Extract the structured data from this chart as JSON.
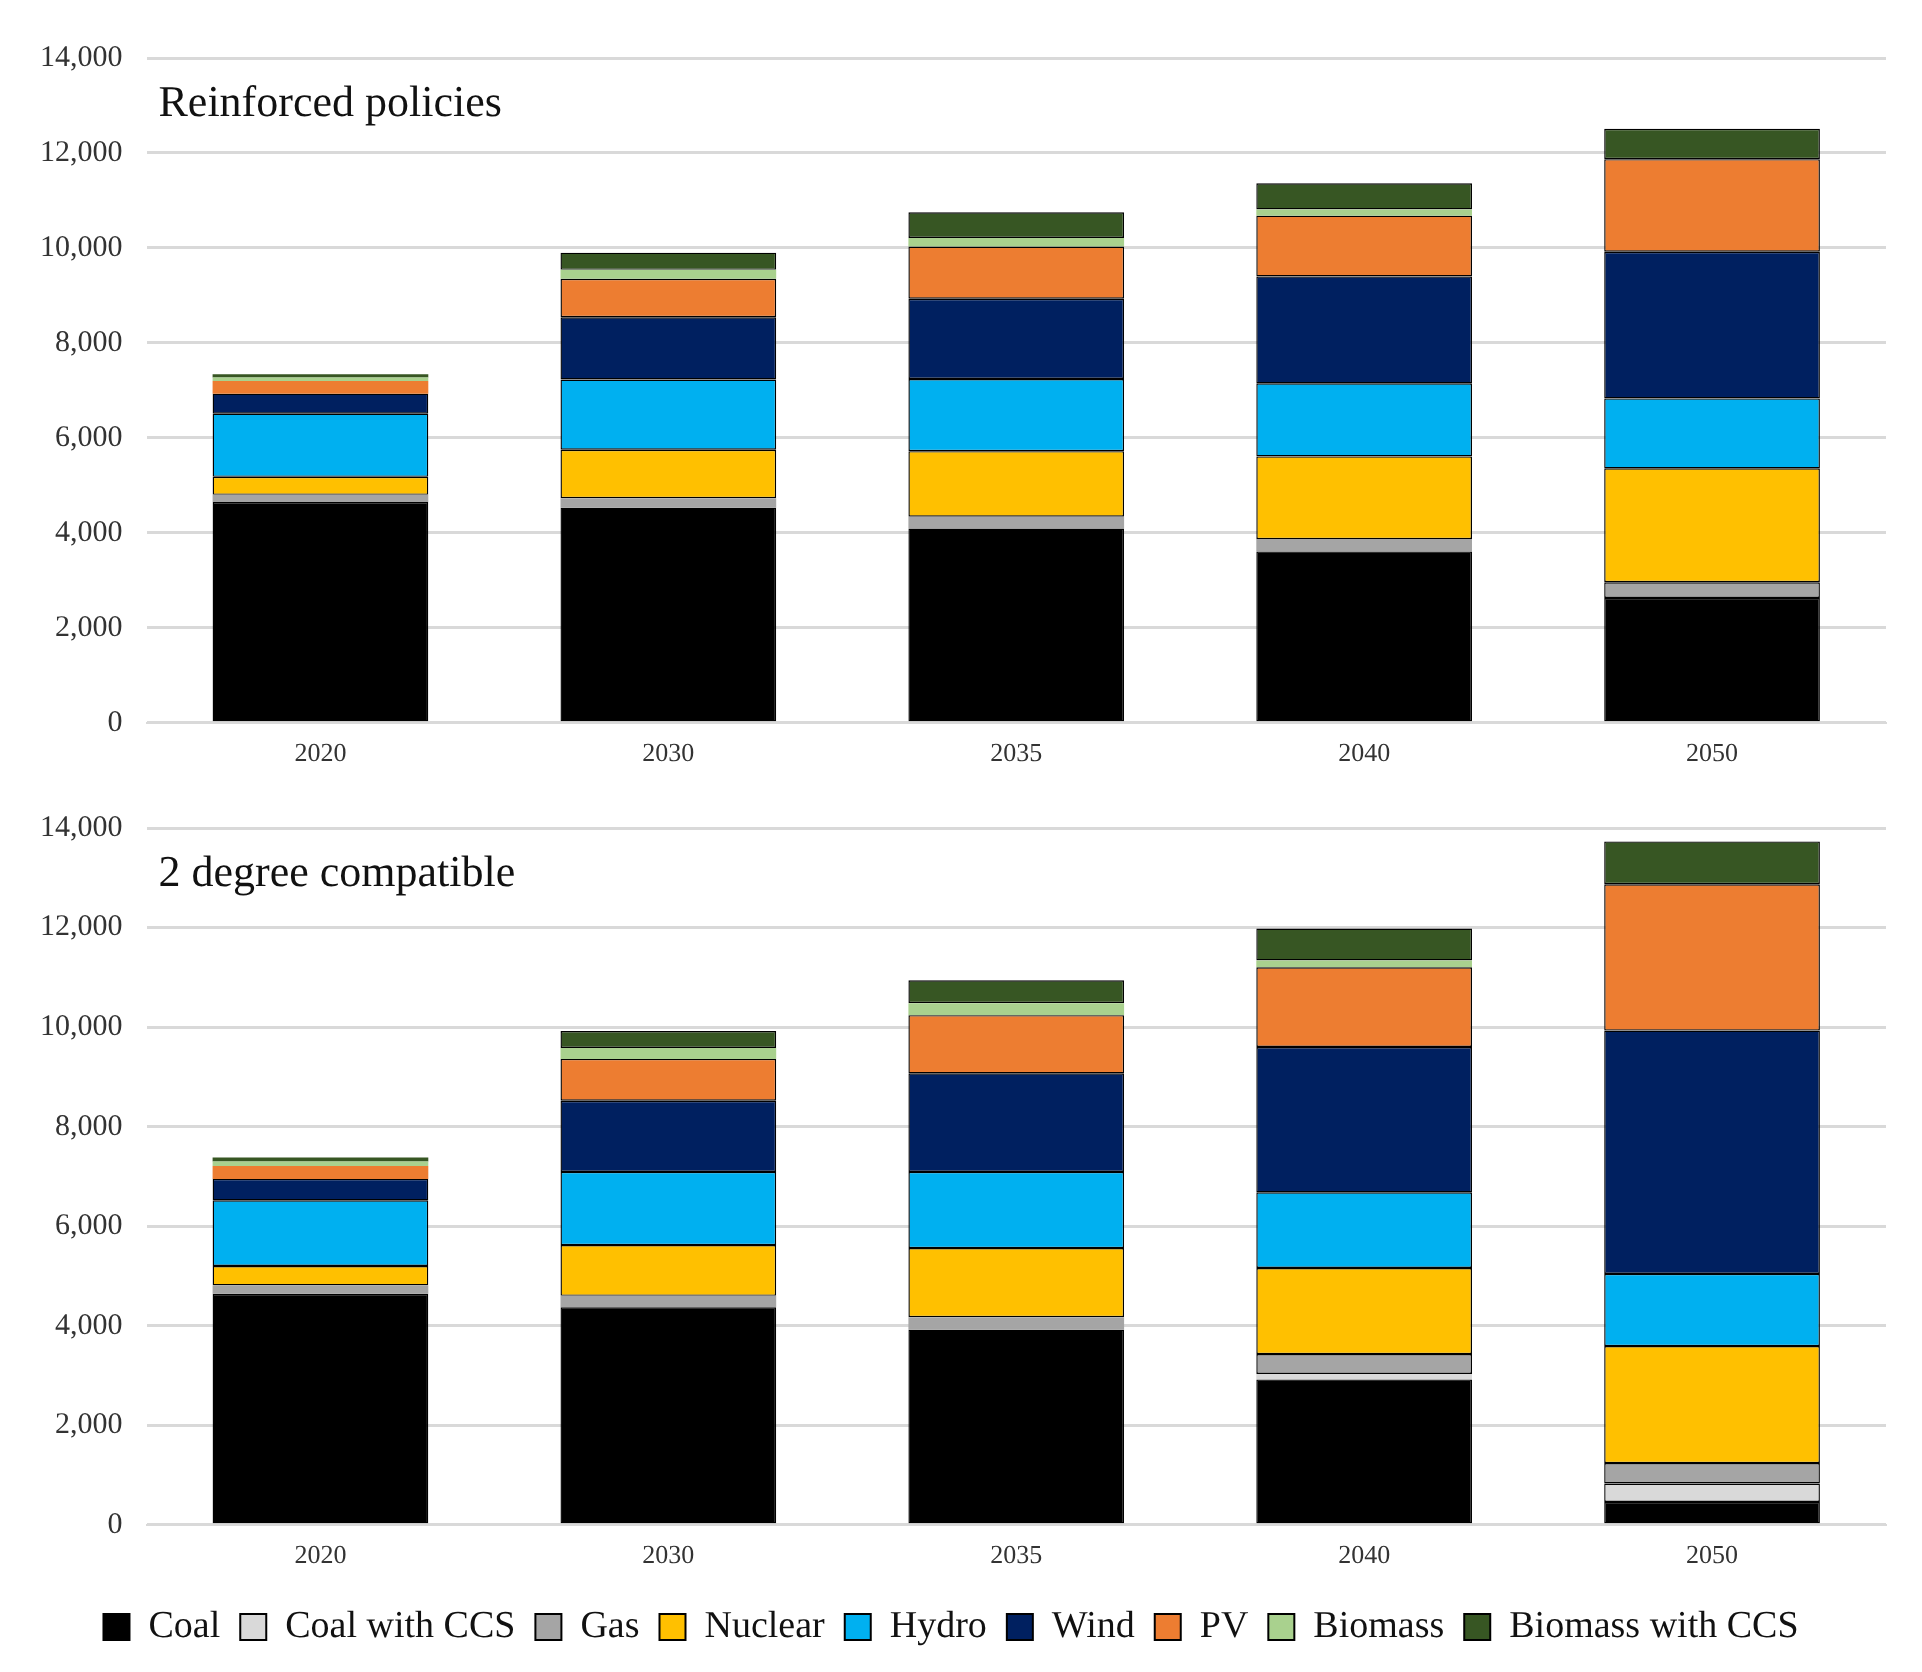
{
  "chart_data": [
    {
      "type": "bar",
      "title": "Reinforced policies",
      "categories": [
        "2020",
        "2030",
        "2035",
        "2040",
        "2050"
      ],
      "stacked": true,
      "ylim": [
        0,
        14000
      ],
      "yticks": [
        0,
        {
          "value": 2000,
          "label": "2,000"
        },
        {
          "value": 4000,
          "label": "4,000"
        },
        {
          "value": 6000,
          "label": "6,000"
        },
        {
          "value": 8000,
          "label": "8,000"
        },
        {
          "value": 10000,
          "label": "10,000"
        },
        {
          "value": 12000,
          "label": "12,000"
        },
        {
          "value": 14000,
          "label": "14,000"
        }
      ],
      "grid": "y",
      "legend": false,
      "series": [
        {
          "color": "#000000",
          "values": [
            4650,
            4530,
            4090,
            3610,
            2630
          ]
        },
        {
          "color": "#d9d9d9",
          "values": [
            0,
            0,
            0,
            0,
            0
          ]
        },
        {
          "color": "#a5a5a5",
          "values": [
            150,
            200,
            250,
            260,
            330
          ]
        },
        {
          "color": "#ffc000",
          "values": [
            380,
            1020,
            1380,
            1740,
            2400
          ]
        },
        {
          "color": "#00b0f0",
          "values": [
            1330,
            1480,
            1520,
            1540,
            1470
          ]
        },
        {
          "color": "#002060",
          "values": [
            420,
            1310,
            1690,
            2250,
            3090
          ]
        },
        {
          "color": "#ed7d31",
          "values": [
            270,
            810,
            1100,
            1280,
            1950
          ]
        },
        {
          "color": "#a9d18e",
          "values": [
            70,
            190,
            180,
            130,
            0
          ]
        },
        {
          "color": "#375623",
          "values": [
            70,
            360,
            540,
            550,
            640
          ]
        }
      ]
    },
    {
      "type": "bar",
      "title": "2 degree compatible",
      "categories": [
        "2020",
        "2030",
        "2035",
        "2040",
        "2050"
      ],
      "stacked": true,
      "ylim": [
        0,
        14000
      ],
      "yticks": [
        0,
        {
          "value": 2000,
          "label": "2,000"
        },
        {
          "value": 4000,
          "label": "4,000"
        },
        {
          "value": 6000,
          "label": "6,000"
        },
        {
          "value": 8000,
          "label": "8,000"
        },
        {
          "value": 10000,
          "label": "10,000"
        },
        {
          "value": 12000,
          "label": "12,000"
        },
        {
          "value": 14000,
          "label": "14,000"
        }
      ],
      "grid": "y",
      "legend": "bottom",
      "series": [
        {
          "name": "Coal",
          "color": "#000000",
          "values": [
            4640,
            4370,
            3920,
            2920,
            460
          ]
        },
        {
          "name": "Coal with CCS",
          "color": "#d9d9d9",
          "values": [
            0,
            0,
            0,
            110,
            370
          ]
        },
        {
          "name": "Gas",
          "color": "#a5a5a5",
          "values": [
            170,
            230,
            250,
            400,
            410
          ]
        },
        {
          "name": "Nuclear",
          "color": "#ffc000",
          "values": [
            390,
            1020,
            1390,
            1730,
            2350
          ]
        },
        {
          "name": "Hydro",
          "color": "#00b0f0",
          "values": [
            1320,
            1470,
            1530,
            1520,
            1450
          ]
        },
        {
          "name": "Wind",
          "color": "#002060",
          "values": [
            430,
            1430,
            1980,
            2920,
            4890
          ]
        },
        {
          "name": "PV",
          "color": "#ed7d31",
          "values": [
            260,
            840,
            1170,
            1600,
            2940
          ]
        },
        {
          "name": "Biomass",
          "color": "#a9d18e",
          "values": [
            90,
            220,
            240,
            140,
            0
          ]
        },
        {
          "name": "Biomass with CCS",
          "color": "#375623",
          "values": [
            80,
            340,
            460,
            640,
            860
          ]
        }
      ]
    }
  ]
}
